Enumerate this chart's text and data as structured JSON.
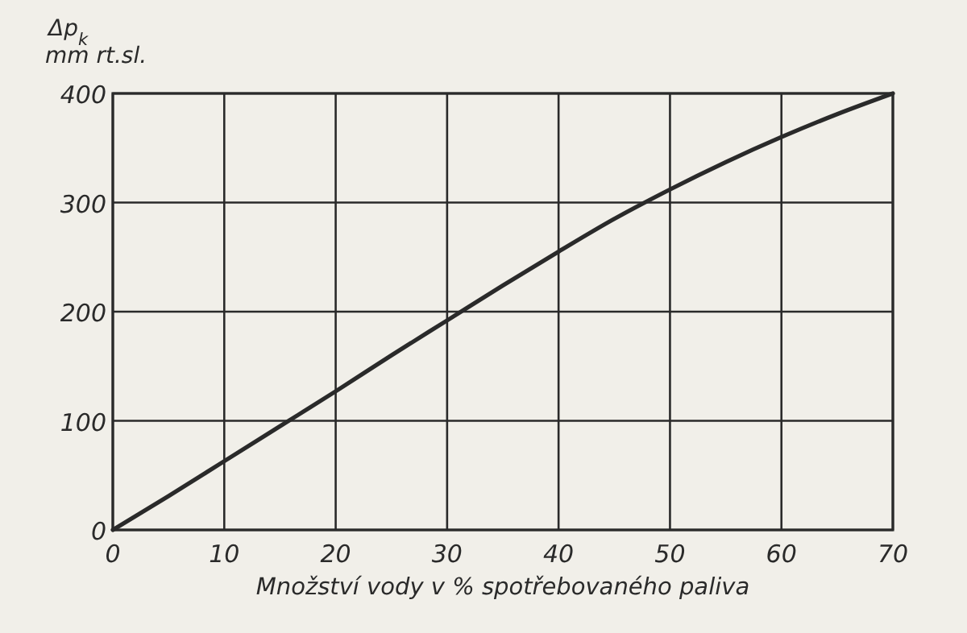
{
  "chart_data": {
    "type": "line",
    "xlabel": "Množství vody v % spotřebovaného paliva",
    "ylabel": "Δp$_{k}$ mm rt.sl.",
    "x": [
      0,
      5,
      10,
      15,
      20,
      25,
      30,
      35,
      40,
      45,
      50,
      55,
      60,
      65,
      70
    ],
    "series": [
      {
        "color": "#2a2a2a",
        "values": [
          0,
          31,
          63,
          95,
          127,
          160,
          192,
          224,
          255,
          285,
          312,
          337,
          360,
          381,
          400
        ]
      }
    ],
    "xlim": [
      0,
      70
    ],
    "ylim": [
      0,
      400
    ],
    "xticks": [
      0,
      10,
      20,
      30,
      40,
      50,
      60,
      70
    ],
    "yticks": [
      0,
      100,
      200,
      300,
      400
    ],
    "grid": true,
    "marker": "none",
    "line_style": "solid"
  }
}
